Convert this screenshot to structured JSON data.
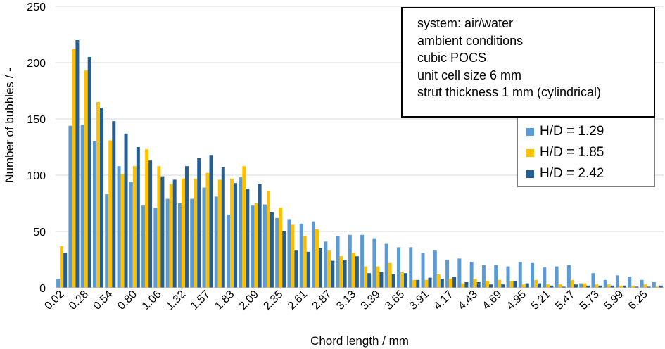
{
  "chart_data": {
    "type": "bar",
    "xlabel": "Chord length / mm",
    "ylabel": "Number of bubbles / -",
    "ylim": [
      0,
      250
    ],
    "yticks": [
      0,
      50,
      100,
      150,
      200,
      250
    ],
    "categories": [
      "0.02",
      "0.15",
      "0.28",
      "0.41",
      "0.54",
      "0.67",
      "0.80",
      "0.93",
      "1.06",
      "1.19",
      "1.32",
      "1.45",
      "1.57",
      "1.70",
      "1.83",
      "1.96",
      "2.09",
      "2.22",
      "2.35",
      "2.48",
      "2.61",
      "2.74",
      "2.87",
      "3.00",
      "3.13",
      "3.26",
      "3.39",
      "3.52",
      "3.65",
      "3.78",
      "3.91",
      "4.04",
      "4.17",
      "4.30",
      "4.43",
      "4.56",
      "4.69",
      "4.82",
      "4.95",
      "5.08",
      "5.21",
      "5.34",
      "5.47",
      "5.60",
      "5.73",
      "5.86",
      "5.99",
      "6.12",
      "6.25",
      "6.38"
    ],
    "x_tick_labels": [
      "0.02",
      "0.28",
      "0.54",
      "0.80",
      "1.06",
      "1.32",
      "1.57",
      "1.83",
      "2.09",
      "2.35",
      "2.61",
      "2.87",
      "3.13",
      "3.39",
      "3.65",
      "3.91",
      "4.17",
      "4.43",
      "4.69",
      "4.95",
      "5.21",
      "5.47",
      "5.73",
      "5.99",
      "6.25"
    ],
    "series": [
      {
        "name": "H/D = 1.29",
        "color": "#5B9BD5",
        "values": [
          8,
          144,
          145,
          130,
          83,
          108,
          94,
          73,
          71,
          79,
          75,
          79,
          89,
          81,
          65,
          98,
          73,
          74,
          62,
          61,
          57,
          59,
          41,
          46,
          47,
          47,
          44,
          39,
          36,
          36,
          31,
          33,
          25,
          26,
          23,
          20,
          20,
          19,
          23,
          22,
          18,
          19,
          20,
          4,
          13,
          7,
          11,
          10,
          7,
          5
        ]
      },
      {
        "name": "H/D = 1.85",
        "color": "#FFC000",
        "values": [
          37,
          212,
          193,
          165,
          131,
          101,
          108,
          123,
          108,
          92,
          97,
          97,
          102,
          96,
          97,
          108,
          75,
          86,
          71,
          56,
          46,
          52,
          33,
          28,
          31,
          19,
          19,
          22,
          14,
          7,
          7,
          12,
          8,
          4,
          8,
          6,
          7,
          6,
          3,
          7,
          3,
          3,
          7,
          4,
          3,
          3,
          2,
          2,
          3,
          1
        ]
      },
      {
        "name": "H/D = 2.42",
        "color": "#255E91",
        "values": [
          31,
          220,
          205,
          160,
          148,
          137,
          125,
          113,
          99,
          96,
          108,
          115,
          118,
          107,
          93,
          88,
          92,
          67,
          50,
          33,
          32,
          35,
          24,
          25,
          28,
          13,
          14,
          12,
          13,
          7,
          9,
          8,
          10,
          5,
          5,
          3,
          3,
          6,
          4,
          4,
          2,
          1,
          3,
          2,
          2,
          2,
          2,
          1,
          1,
          2
        ]
      }
    ],
    "legend": {
      "position": "right"
    },
    "annotation": [
      "system: air/water",
      "ambient conditions",
      "cubic POCS",
      "unit cell size 6 mm",
      "strut thickness 1 mm (cylindrical)"
    ]
  }
}
